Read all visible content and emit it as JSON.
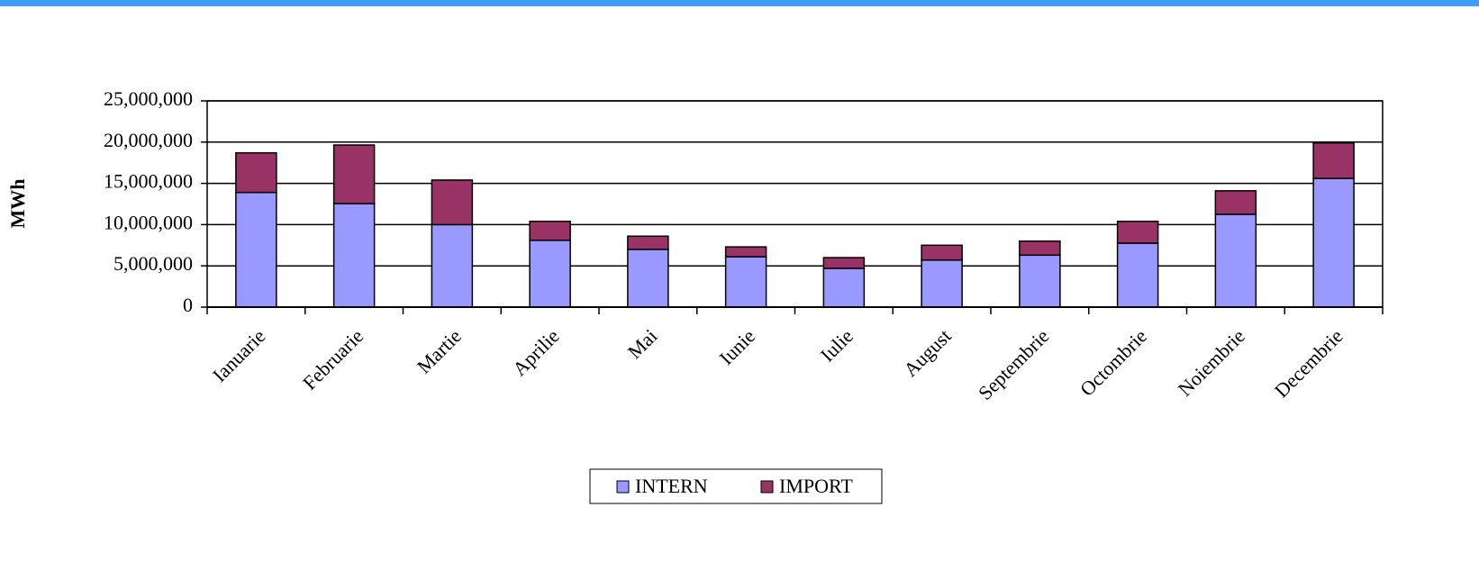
{
  "chart_data": {
    "type": "stacked_bar",
    "y_label": "MWh",
    "categories": [
      "Ianuarie",
      "Februarie",
      "Martie",
      "Aprilie",
      "Mai",
      "Iunie",
      "Iulie",
      "August",
      "Septembrie",
      "Octombrie",
      "Noiembrie",
      "Decembrie"
    ],
    "series": [
      {
        "name": "INTERN",
        "color": "#9999ff",
        "values": [
          13900000,
          12550000,
          10000000,
          8100000,
          7000000,
          6100000,
          4700000,
          5700000,
          6300000,
          7750000,
          11250000,
          15600000
        ]
      },
      {
        "name": "IMPORT",
        "color": "#993366",
        "values": [
          4800000,
          7100000,
          5400000,
          2300000,
          1600000,
          1200000,
          1300000,
          1800000,
          1700000,
          2650000,
          2850000,
          4300000
        ]
      }
    ],
    "ylim": [
      0,
      25000000
    ],
    "yticks": [
      0,
      {
        "value": 5000000,
        "label": "5,000,000"
      },
      {
        "value": 10000000,
        "label": "10,000,000"
      },
      {
        "value": 15000000,
        "label": "15,000,000"
      },
      {
        "value": 20000000,
        "label": "20,000,000"
      },
      {
        "value": 25000000,
        "label": "25,000,000"
      }
    ],
    "grid": true,
    "legend": "bottom"
  }
}
